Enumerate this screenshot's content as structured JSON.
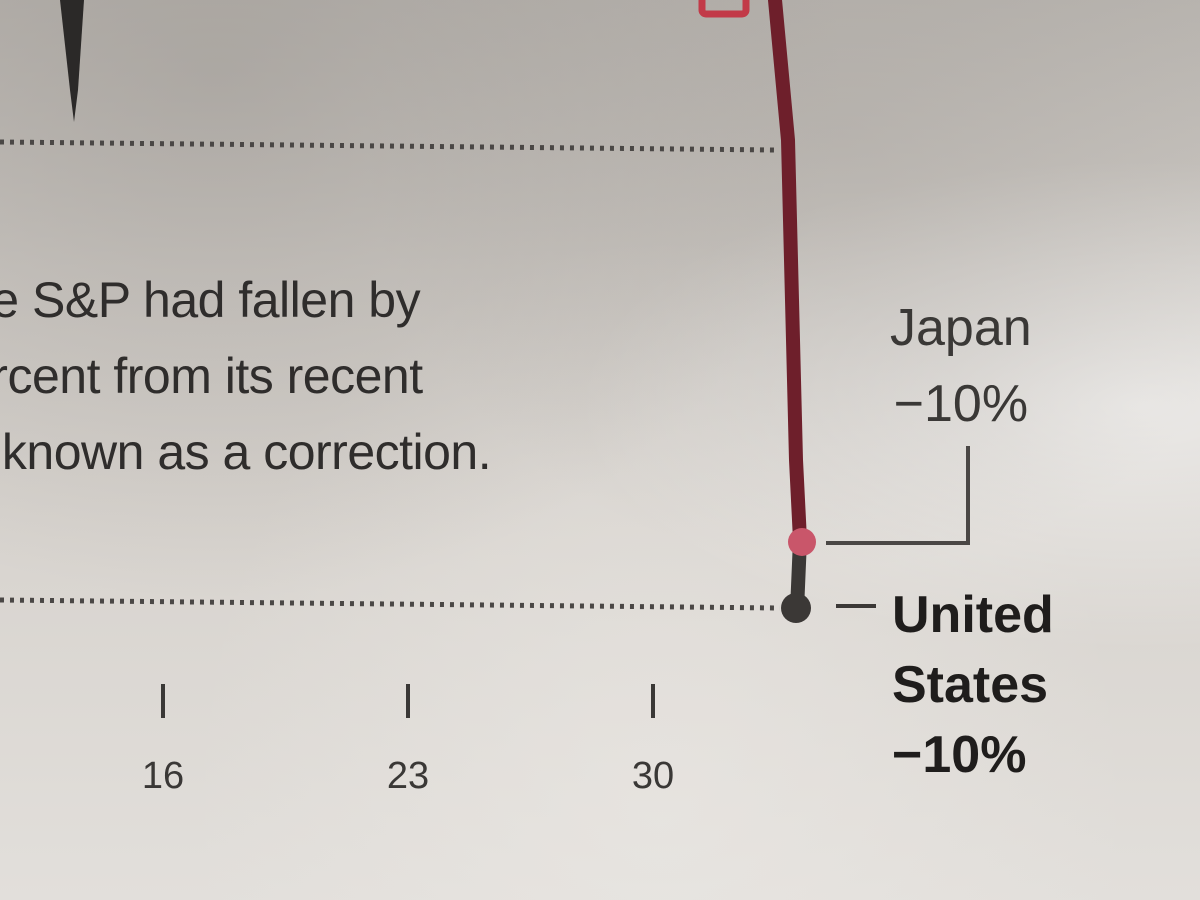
{
  "chart_data": {
    "type": "line",
    "x_ticks": [
      "16",
      "23",
      "30"
    ],
    "annotation_lines": [
      "he S&P had fallen by",
      "ercent from its recent",
      "s known as a correction."
    ],
    "series": [
      {
        "label_name": "Japan",
        "label_value": "−10%",
        "color": "#7a2230"
      },
      {
        "label_name": "United States",
        "label_lines": [
          "United",
          "States"
        ],
        "label_value": "−10%",
        "color": "#3b3836"
      }
    ]
  }
}
